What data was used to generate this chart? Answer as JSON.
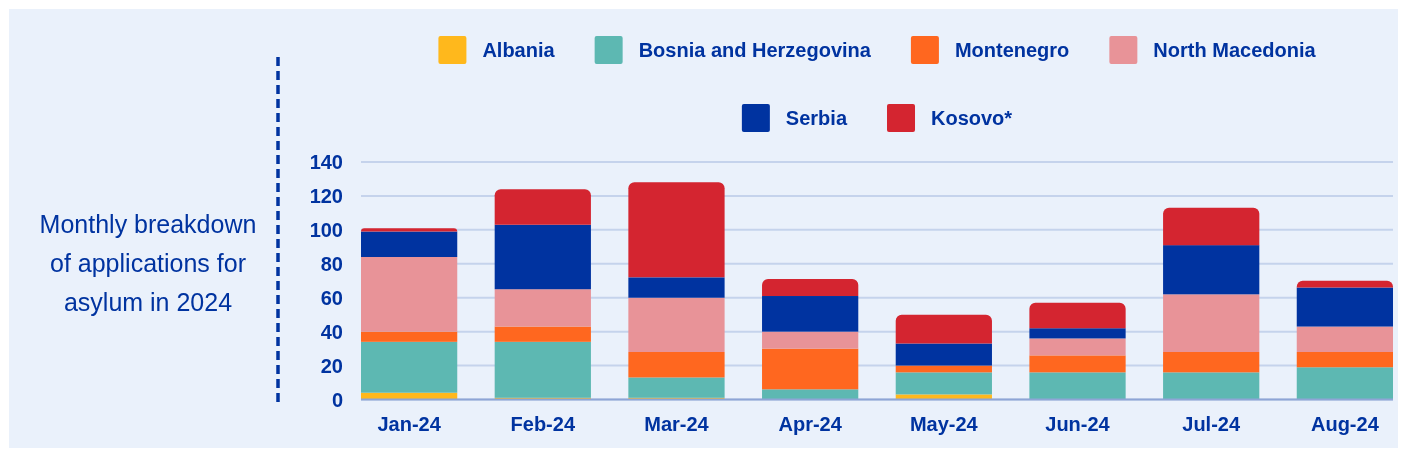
{
  "chart_data": {
    "type": "bar",
    "title": "Monthly breakdown of applications for asylum in 2024",
    "categories": [
      "Jan-24",
      "Feb-24",
      "Mar-24",
      "Apr-24",
      "May-24",
      "Jun-24",
      "Jul-24",
      "Aug-24"
    ],
    "series": [
      {
        "name": "Albania",
        "color": "#ffb81c",
        "values": [
          4,
          1,
          1,
          0,
          3,
          0,
          0,
          0
        ]
      },
      {
        "name": "Bosnia and Herzegovina",
        "color": "#5db8b2",
        "values": [
          30,
          33,
          12,
          6,
          13,
          16,
          16,
          19
        ]
      },
      {
        "name": "Montenegro",
        "color": "#ff671f",
        "values": [
          6,
          9,
          15,
          24,
          4,
          10,
          12,
          9
        ]
      },
      {
        "name": "North Macedonia",
        "color": "#e89398",
        "values": [
          44,
          22,
          32,
          10,
          0,
          10,
          34,
          15
        ]
      },
      {
        "name": "Serbia",
        "color": "#0033a0",
        "values": [
          15,
          38,
          12,
          21,
          13,
          6,
          29,
          23
        ]
      },
      {
        "name": "Kosovo*",
        "color": "#d42530",
        "values": [
          2,
          21,
          56,
          10,
          17,
          15,
          22,
          4
        ]
      }
    ],
    "stacked": true,
    "ylim": [
      0,
      140
    ],
    "yticks": [
      0,
      20,
      40,
      60,
      80,
      100,
      120,
      140
    ],
    "grid": "y",
    "legend": "top"
  }
}
